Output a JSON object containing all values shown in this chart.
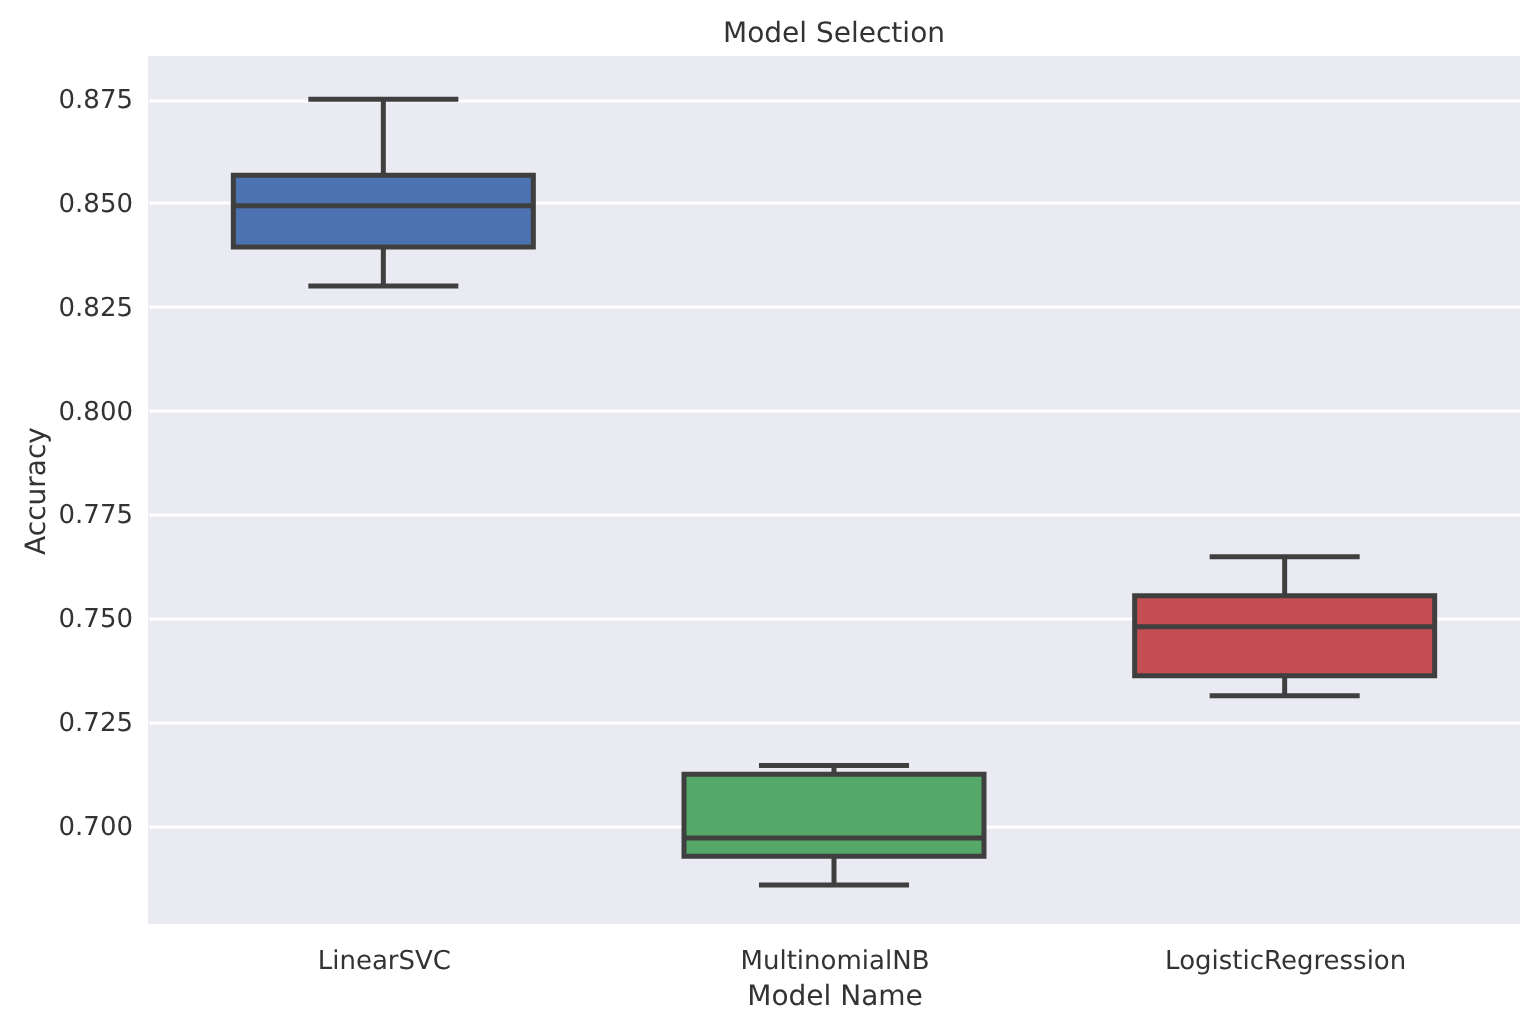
{
  "chart_data": {
    "type": "box",
    "title": "Model Selection",
    "xlabel": "Model Name",
    "ylabel": "Accuracy",
    "categories": [
      "LinearSVC",
      "MultinomialNB",
      "LogisticRegression"
    ],
    "colors": [
      "#4c72b0",
      "#55a868",
      "#c44e52"
    ],
    "boxes": [
      {
        "low": 0.83,
        "q1": 0.8394,
        "median": 0.8493,
        "q3": 0.8567,
        "high": 0.875
      },
      {
        "low": 0.6857,
        "q1": 0.6926,
        "median": 0.697,
        "q3": 0.7124,
        "high": 0.7145
      },
      {
        "low": 0.7313,
        "q1": 0.7361,
        "median": 0.7479,
        "q3": 0.7554,
        "high": 0.7648
      }
    ],
    "ylim": [
      0.6763,
      0.8854
    ],
    "yticks": [
      {
        "value": 0.7,
        "label": "0.700"
      },
      0.725,
      {
        "value": 0.75,
        "label": "0.750"
      },
      0.775,
      {
        "value": 0.8,
        "label": "0.800"
      },
      0.825,
      {
        "value": 0.85,
        "label": "0.850"
      },
      0.875
    ],
    "grid": "y",
    "legend": false
  }
}
